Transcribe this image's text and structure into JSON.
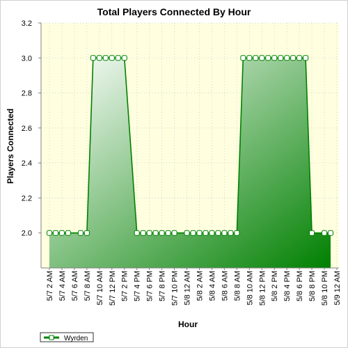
{
  "chart_data": {
    "type": "area",
    "title": "Total Players Connected By Hour",
    "xlabel": "Hour",
    "ylabel": "Players Connected",
    "ylim": [
      1.8,
      3.2
    ],
    "yticks": [
      2.0,
      2.2,
      2.4,
      2.6,
      2.8,
      3.0,
      3.2
    ],
    "xticks": [
      "5/7 2 AM",
      "5/7 4 AM",
      "5/7 6 AM",
      "5/7 8 AM",
      "5/7 10 AM",
      "5/7 12 PM",
      "5/7 2 PM",
      "5/7 4 PM",
      "5/7 6 PM",
      "5/7 8 PM",
      "5/7 10 PM",
      "5/8 12 AM",
      "5/8 2 AM",
      "5/8 4 AM",
      "5/8 6 AM",
      "5/8 8 AM",
      "5/8 10 AM",
      "5/8 12 PM",
      "5/8 2 PM",
      "5/8 4 PM",
      "5/8 6 PM",
      "5/8 8 PM",
      "5/8 10 PM",
      "5/9 12 AM"
    ],
    "xrange_hours": [
      0,
      47
    ],
    "grid": true,
    "legend": "bottom-left",
    "colors": {
      "line": "#008000",
      "fill_light": "#ffffff",
      "fill_dark": "#008000",
      "plot_bg": "#ffffe0",
      "grid": "#c8c8c8"
    },
    "series": [
      {
        "name": "Wyrden",
        "x_hours": [
          1,
          2,
          3,
          4,
          6,
          7,
          8,
          9,
          10,
          11,
          12,
          13,
          15,
          16,
          17,
          18,
          19,
          20,
          21,
          23,
          24,
          25,
          26,
          27,
          28,
          29,
          30,
          31,
          32,
          33,
          34,
          35,
          36,
          37,
          38,
          39,
          40,
          41,
          42,
          43,
          45,
          46
        ],
        "values": [
          2,
          2,
          2,
          2,
          2,
          2,
          3,
          3,
          3,
          3,
          3,
          3,
          2,
          2,
          2,
          2,
          2,
          2,
          2,
          2,
          2,
          2,
          2,
          2,
          2,
          2,
          2,
          2,
          3,
          3,
          3,
          3,
          3,
          3,
          3,
          3,
          3,
          3,
          3,
          2,
          2,
          2
        ]
      }
    ]
  }
}
